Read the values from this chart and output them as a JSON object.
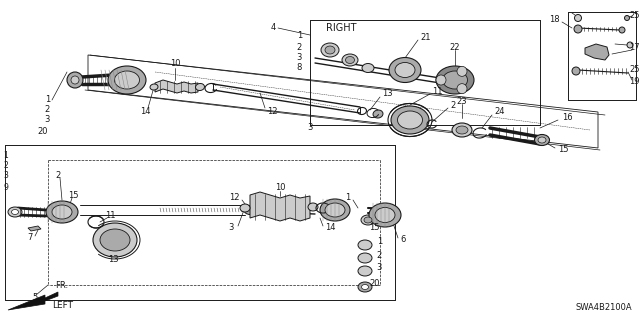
{
  "bg_color": "#ffffff",
  "lc": "#1a1a1a",
  "gray1": "#888888",
  "gray2": "#aaaaaa",
  "gray3": "#cccccc",
  "gray4": "#555555",
  "diagram_code": "SWA4B2100A",
  "fr_label": "FR.",
  "left_label": "LEFT",
  "right_label": "RIGHT",
  "fs": 6.0,
  "fs_sm": 5.5
}
